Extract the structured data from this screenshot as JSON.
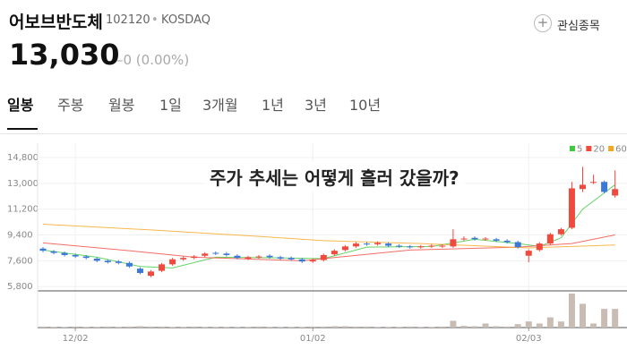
{
  "header": {
    "name": "어보브반도체",
    "code": "102120",
    "separator": "•",
    "market": "KOSDAQ",
    "price": "13,030",
    "change": "–0 (0.00%)",
    "watch": "관심종목"
  },
  "tabs": [
    "일봉",
    "주봉",
    "월봉",
    "1일",
    "3개월",
    "1년",
    "3년",
    "10년"
  ],
  "chart_data": {
    "type": "candlestick",
    "annotation": "주가 추세는 어떻게 흘러 갔을까?",
    "up_color": "#f0493e",
    "down_color": "#3c78d8",
    "volume_color": "#c9bcb3",
    "open": [
      8450,
      8250,
      8150,
      8000,
      7900,
      7750,
      7600,
      7550,
      7450,
      7050,
      6550,
      6900,
      7350,
      7700,
      7800,
      7950,
      8150,
      8100,
      7950,
      7750,
      7850,
      7950,
      7850,
      7800,
      7700,
      7550,
      7650,
      8050,
      8350,
      8600,
      8800,
      8750,
      8800,
      8650,
      8600,
      8550,
      8600,
      8600,
      8600,
      9100,
      9200,
      9100,
      9100,
      9000,
      8900,
      7950,
      8350,
      8800,
      9450,
      9900,
      12600,
      13050,
      13100,
      12150
    ],
    "high": [
      8550,
      8350,
      8250,
      8100,
      8000,
      7850,
      7700,
      7650,
      7550,
      7150,
      6950,
      7450,
      7800,
      7900,
      8000,
      8200,
      8250,
      8200,
      8050,
      7950,
      8000,
      8050,
      7950,
      7900,
      7800,
      7750,
      8100,
      8400,
      8700,
      8900,
      8900,
      8950,
      8900,
      8750,
      8700,
      8700,
      8750,
      8750,
      9800,
      9300,
      9300,
      9250,
      9200,
      9100,
      9000,
      8400,
      8900,
      9550,
      9900,
      13100,
      14150,
      13600,
      13200,
      13900
    ],
    "low": [
      8200,
      8050,
      7900,
      7800,
      7700,
      7500,
      7400,
      7350,
      7100,
      6650,
      6450,
      6800,
      7250,
      7600,
      7700,
      7850,
      8000,
      7900,
      7700,
      7650,
      7750,
      7750,
      7650,
      7600,
      7450,
      7450,
      7550,
      7950,
      8250,
      8500,
      8650,
      8650,
      8550,
      8500,
      8450,
      8450,
      8500,
      8500,
      8500,
      9000,
      9000,
      9000,
      8900,
      8800,
      8450,
      7500,
      8250,
      8700,
      9350,
      9800,
      12400,
      12950,
      12300,
      12000
    ],
    "close": [
      8300,
      8150,
      8000,
      7900,
      7800,
      7600,
      7500,
      7450,
      7200,
      6750,
      6850,
      7350,
      7700,
      7800,
      7900,
      8100,
      8100,
      8000,
      7800,
      7850,
      7900,
      7850,
      7750,
      7700,
      7550,
      7650,
      8000,
      8300,
      8600,
      8800,
      8750,
      8850,
      8650,
      8600,
      8550,
      8600,
      8650,
      8650,
      9100,
      9150,
      9100,
      9150,
      9000,
      8900,
      8550,
      8300,
      8800,
      9450,
      9800,
      12650,
      12900,
      13100,
      12400,
      12600
    ],
    "volume": [
      3,
      2,
      2,
      3,
      2,
      2,
      3,
      2,
      3,
      4,
      3,
      3,
      2,
      2,
      3,
      2,
      2,
      2,
      2,
      2,
      3,
      2,
      2,
      2,
      2,
      3,
      3,
      4,
      4,
      3,
      3,
      2,
      2,
      2,
      3,
      2,
      2,
      3,
      20,
      5,
      4,
      12,
      4,
      3,
      10,
      18,
      12,
      30,
      18,
      100,
      70,
      12,
      55,
      55
    ],
    "vlim": [
      0,
      100
    ],
    "ylim": [
      5500,
      15800
    ],
    "yticks": [
      {
        "value": 5800,
        "label": "5,800"
      },
      {
        "value": 7600,
        "label": "7,600"
      },
      {
        "value": 9400,
        "label": "9,400"
      },
      {
        "value": 11200,
        "label": "11,200"
      },
      {
        "value": 13000,
        "label": "13,000"
      },
      {
        "value": 14800,
        "label": "14,800"
      }
    ],
    "xticks": [
      {
        "value": 3,
        "label": "12/02"
      },
      {
        "value": 25,
        "label": "01/02"
      },
      {
        "value": 45,
        "label": "02/03"
      }
    ],
    "grid": true,
    "moving_averages": [
      {
        "name": "5",
        "color": "#3fc93f",
        "x": [
          0,
          5,
          9,
          12,
          16,
          22,
          26,
          30,
          36,
          40,
          44,
          46,
          48,
          50,
          53
        ],
        "values": [
          8350,
          7850,
          7200,
          7100,
          7850,
          7800,
          7750,
          8550,
          8600,
          9100,
          8800,
          8600,
          9200,
          11200,
          12900
        ]
      },
      {
        "name": "20",
        "color": "#f0493e",
        "x": [
          0,
          8,
          14,
          24,
          34,
          44,
          49,
          53
        ],
        "values": [
          8850,
          8300,
          7850,
          7600,
          8350,
          8550,
          8800,
          9400
        ]
      },
      {
        "name": "60",
        "color": "#f5a623",
        "x": [
          0,
          10,
          20,
          26,
          35,
          45,
          53
        ],
        "values": [
          10150,
          9750,
          9300,
          9000,
          8800,
          8500,
          8700
        ]
      }
    ]
  }
}
